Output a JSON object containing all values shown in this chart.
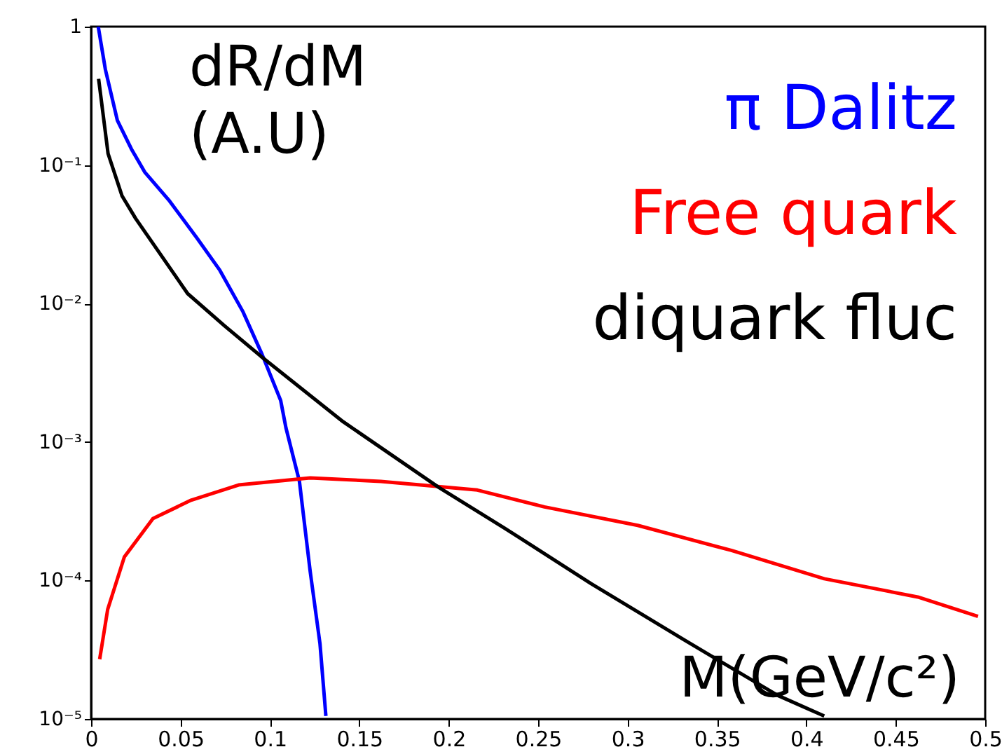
{
  "chart_data": {
    "type": "line",
    "xlabel": "M(GeV/c²)",
    "ylabel": "dR/dM\n(A.U)",
    "log": "y",
    "grid": false,
    "legend": "top right",
    "xlim": [
      0,
      0.5
    ],
    "ylim": [
      1e-05,
      1
    ],
    "xticks": [
      0,
      0.05,
      0.1,
      0.15,
      0.2,
      0.25,
      0.3,
      0.35,
      0.4,
      0.45,
      0.5
    ],
    "yticks": [
      {
        "value": 1e-05,
        "label": "10⁻⁵"
      },
      {
        "value": 0.0001,
        "label": "10⁻⁴"
      },
      {
        "value": 0.001,
        "label": "10⁻³"
      },
      {
        "value": 0.01,
        "label": "10⁻²"
      },
      {
        "value": 0.1,
        "label": "10⁻¹"
      },
      1
    ],
    "series": [
      {
        "name": "π Dalitz",
        "color": "#0000ff",
        "x": [
          0.004,
          0.008,
          0.0147,
          0.0225,
          0.03,
          0.0434,
          0.059,
          0.072,
          0.085,
          0.0956,
          0.106,
          0.109,
          0.1165,
          0.1225,
          0.128,
          0.1313
        ],
        "values": [
          1.0,
          0.49,
          0.21,
          0.131,
          0.089,
          0.056,
          0.03,
          0.0174,
          0.0087,
          0.0043,
          0.002,
          0.00126,
          0.00052,
          0.000117,
          3.5e-05,
          1.05e-05
        ]
      },
      {
        "name": "Free quark",
        "color": "#ff0000",
        "x": [
          0.0048,
          0.0093,
          0.0186,
          0.0346,
          0.0559,
          0.0825,
          0.1225,
          0.162,
          0.216,
          0.2535,
          0.3057,
          0.358,
          0.41,
          0.4623,
          0.496
        ],
        "values": [
          2.7e-05,
          6.2e-05,
          0.000148,
          0.00028,
          0.00038,
          0.00049,
          0.00055,
          0.00052,
          0.00045,
          0.00034,
          0.00025,
          0.000165,
          0.000103,
          7.6e-05,
          5.5e-05
        ]
      },
      {
        "name": "diquark fluc",
        "color": "#000000",
        "x": [
          0.0042,
          0.0095,
          0.0173,
          0.025,
          0.054,
          0.0747,
          0.0956,
          0.141,
          0.1945,
          0.231,
          0.2796,
          0.332,
          0.384,
          0.41
        ],
        "values": [
          0.42,
          0.121,
          0.06,
          0.041,
          0.0118,
          0.0069,
          0.0041,
          0.0014,
          0.00047,
          0.00024,
          9.5e-05,
          3.7e-05,
          1.48e-05,
          1.05e-05
        ]
      }
    ]
  }
}
